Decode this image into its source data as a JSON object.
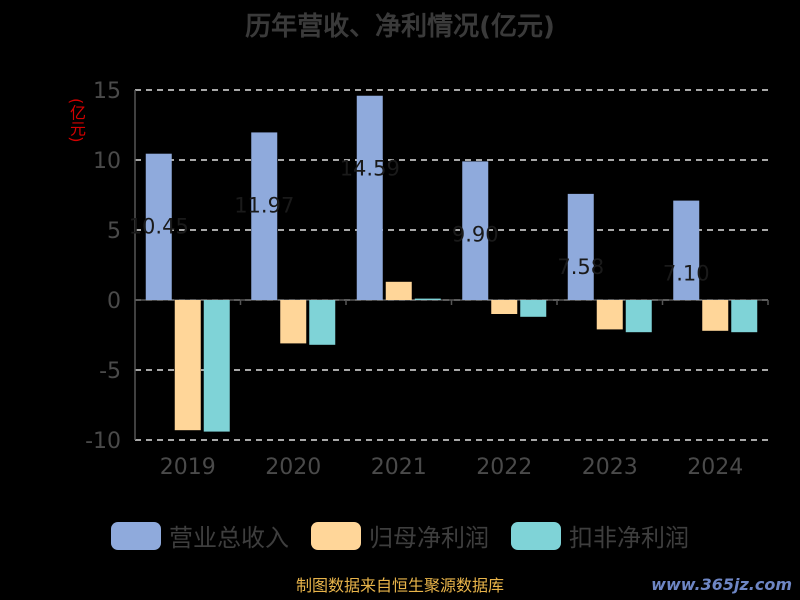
{
  "title": "历年营收、净利情况(亿元)",
  "unit_label": "(亿元)",
  "source": "制图数据来自恒生聚源数据库",
  "watermark": "www.365jz.com",
  "colors": {
    "revenue": "#8FAADC",
    "net_profit": "#FFD699",
    "deducted_profit": "#7FD3D7",
    "axis": "#555555",
    "grid": "#e0e0e0",
    "tick_label": "#4a4a4a"
  },
  "chart_data": {
    "type": "bar",
    "categories": [
      "2019",
      "2020",
      "2021",
      "2022",
      "2023",
      "2024"
    ],
    "series": [
      {
        "name": "营业总收入",
        "values": [
          10.45,
          11.97,
          14.59,
          9.9,
          7.58,
          7.1
        ],
        "labels": [
          "10.45",
          "11.97",
          "14.59",
          "9.90",
          "7.58",
          "7.10"
        ]
      },
      {
        "name": "归母净利润",
        "values": [
          -9.3,
          -3.1,
          1.3,
          -1.0,
          -2.1,
          -2.2
        ]
      },
      {
        "name": "扣非净利润",
        "values": [
          -9.4,
          -3.2,
          0.1,
          -1.2,
          -2.3,
          -2.3
        ]
      }
    ],
    "yticks": [
      15,
      10,
      5,
      0,
      -5,
      -10
    ],
    "ylim": [
      -10,
      15
    ],
    "grid": true,
    "legend": "bottom"
  }
}
